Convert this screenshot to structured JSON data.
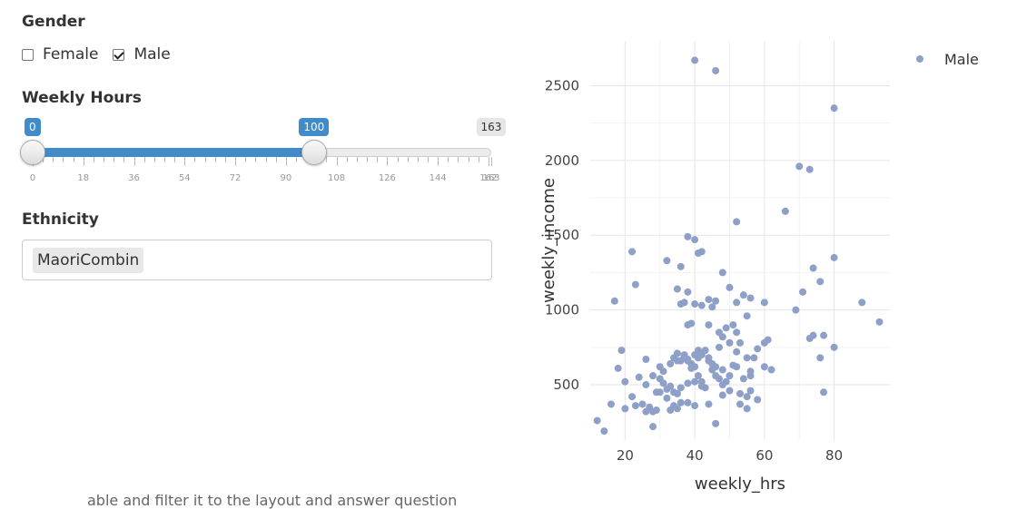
{
  "gender": {
    "title": "Gender",
    "options": [
      {
        "label": "Female",
        "checked": false
      },
      {
        "label": "Male",
        "checked": true
      }
    ]
  },
  "hours": {
    "title": "Weekly Hours",
    "min": 0,
    "max": 163,
    "from": 0,
    "to": 100,
    "from_label": "0",
    "to_label": "100",
    "max_label": "163",
    "tick_labels": [
      "0",
      "18",
      "36",
      "54",
      "72",
      "90",
      "108",
      "126",
      "144",
      "162",
      "163"
    ],
    "colors": {
      "active": "#428bca"
    }
  },
  "ethnicity": {
    "title": "Ethnicity",
    "selected": "MaoriCombin"
  },
  "footer": {
    "partial_text": "able and filter it to the layout and answer question"
  },
  "chart_data": {
    "type": "scatter",
    "xlabel": "weekly_hrs",
    "ylabel": "weekly_income",
    "xlim": [
      10,
      96
    ],
    "ylim": [
      130,
      2800
    ],
    "x_ticks": [
      20,
      40,
      60,
      80
    ],
    "y_ticks": [
      500,
      1000,
      1500,
      2000,
      2500
    ],
    "grid": true,
    "legend": "top-right",
    "series": [
      {
        "name": "Male",
        "color": "#8ea0c8",
        "points": [
          [
            40,
            2670
          ],
          [
            46,
            2600
          ],
          [
            80,
            2350
          ],
          [
            70,
            1960
          ],
          [
            73,
            1940
          ],
          [
            52,
            1590
          ],
          [
            66,
            1660
          ],
          [
            38,
            1490
          ],
          [
            40,
            1470
          ],
          [
            42,
            1390
          ],
          [
            41,
            1380
          ],
          [
            22,
            1390
          ],
          [
            23,
            1170
          ],
          [
            36,
            1290
          ],
          [
            32,
            1330
          ],
          [
            48,
            1250
          ],
          [
            50,
            1150
          ],
          [
            54,
            1100
          ],
          [
            56,
            1080
          ],
          [
            52,
            1050
          ],
          [
            60,
            1050
          ],
          [
            17,
            1060
          ],
          [
            74,
            1280
          ],
          [
            76,
            1190
          ],
          [
            71,
            1120
          ],
          [
            80,
            1350
          ],
          [
            88,
            1050
          ],
          [
            93,
            920
          ],
          [
            69,
            1000
          ],
          [
            77,
            830
          ],
          [
            74,
            830
          ],
          [
            73,
            810
          ],
          [
            80,
            750
          ],
          [
            76,
            680
          ],
          [
            77,
            450
          ],
          [
            61,
            800
          ],
          [
            60,
            780
          ],
          [
            58,
            740
          ],
          [
            55,
            960
          ],
          [
            52,
            850
          ],
          [
            51,
            900
          ],
          [
            49,
            880
          ],
          [
            47,
            850
          ],
          [
            45,
            1020
          ],
          [
            46,
            1060
          ],
          [
            44,
            1070
          ],
          [
            42,
            1030
          ],
          [
            40,
            1040
          ],
          [
            37,
            1050
          ],
          [
            35,
            1140
          ],
          [
            38,
            1120
          ],
          [
            39,
            910
          ],
          [
            38,
            900
          ],
          [
            44,
            900
          ],
          [
            36,
            1040
          ],
          [
            40,
            700
          ],
          [
            41,
            680
          ],
          [
            38,
            670
          ],
          [
            36,
            660
          ],
          [
            35,
            660
          ],
          [
            42,
            700
          ],
          [
            44,
            680
          ],
          [
            46,
            620
          ],
          [
            48,
            600
          ],
          [
            50,
            560
          ],
          [
            52,
            620
          ],
          [
            48,
            820
          ],
          [
            50,
            780
          ],
          [
            53,
            780
          ],
          [
            52,
            720
          ],
          [
            47,
            750
          ],
          [
            45,
            640
          ],
          [
            40,
            620
          ],
          [
            39,
            610
          ],
          [
            37,
            700
          ],
          [
            34,
            680
          ],
          [
            33,
            640
          ],
          [
            31,
            590
          ],
          [
            30,
            620
          ],
          [
            28,
            560
          ],
          [
            26,
            500
          ],
          [
            24,
            550
          ],
          [
            19,
            730
          ],
          [
            20,
            520
          ],
          [
            18,
            610
          ],
          [
            22,
            420
          ],
          [
            23,
            360
          ],
          [
            25,
            370
          ],
          [
            26,
            320
          ],
          [
            28,
            320
          ],
          [
            30,
            450
          ],
          [
            32,
            410
          ],
          [
            34,
            360
          ],
          [
            36,
            380
          ],
          [
            38,
            380
          ],
          [
            40,
            360
          ],
          [
            41,
            560
          ],
          [
            42,
            520
          ],
          [
            43,
            480
          ],
          [
            44,
            370
          ],
          [
            46,
            240
          ],
          [
            48,
            430
          ],
          [
            50,
            460
          ],
          [
            53,
            370
          ],
          [
            55,
            340
          ],
          [
            56,
            460
          ],
          [
            58,
            400
          ],
          [
            54,
            540
          ],
          [
            56,
            590
          ],
          [
            55,
            680
          ],
          [
            57,
            680
          ],
          [
            60,
            620
          ],
          [
            62,
            600
          ],
          [
            28,
            220
          ],
          [
            14,
            190
          ],
          [
            12,
            260
          ],
          [
            16,
            370
          ],
          [
            20,
            340
          ],
          [
            26,
            670
          ],
          [
            29,
            450
          ],
          [
            31,
            510
          ],
          [
            33,
            490
          ],
          [
            35,
            440
          ],
          [
            38,
            510
          ],
          [
            40,
            520
          ],
          [
            42,
            490
          ],
          [
            47,
            540
          ],
          [
            51,
            630
          ],
          [
            49,
            520
          ],
          [
            56,
            560
          ],
          [
            35,
            710
          ],
          [
            37,
            690
          ],
          [
            38,
            660
          ],
          [
            39,
            640
          ],
          [
            41,
            730
          ],
          [
            43,
            730
          ],
          [
            44,
            660
          ],
          [
            45,
            600
          ],
          [
            46,
            560
          ],
          [
            48,
            500
          ],
          [
            53,
            440
          ],
          [
            55,
            420
          ],
          [
            30,
            540
          ],
          [
            32,
            470
          ],
          [
            34,
            450
          ],
          [
            36,
            480
          ],
          [
            27,
            350
          ],
          [
            29,
            330
          ],
          [
            33,
            330
          ],
          [
            35,
            340
          ]
        ]
      }
    ]
  }
}
